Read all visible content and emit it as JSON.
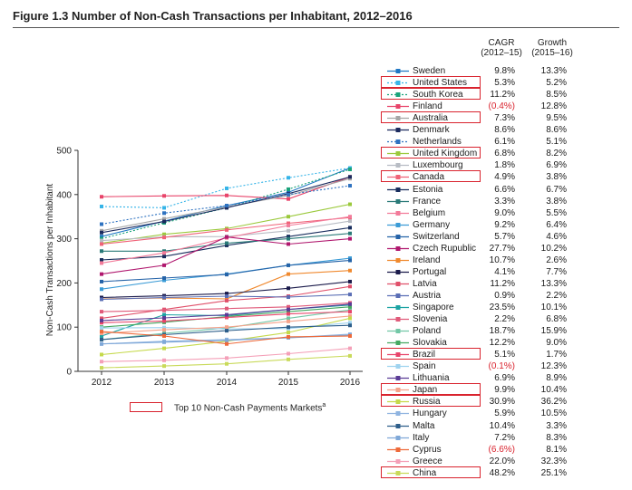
{
  "figure_title": "Figure 1.3 Number of Non-Cash Transactions per Inhabitant, 2012–2016",
  "columns": {
    "cagr": [
      "CAGR",
      "(2012–15)"
    ],
    "growth": [
      "Growth",
      "(2015–16)"
    ]
  },
  "footnote_legend": "Top 10 Non-Cash Payments Markets",
  "footnote_marker": "a",
  "chart_data": {
    "type": "line",
    "title": "Figure 1.3 Number of Non-Cash Transactions per Inhabitant, 2012–2016",
    "xlabel": "",
    "ylabel": "Non-Cash Transactions per Inhabitant",
    "x": [
      "2012",
      "2013",
      "2014",
      "2015",
      "2016"
    ],
    "ylim": [
      0,
      500
    ],
    "yticks": [
      0,
      100,
      200,
      300,
      400,
      500
    ],
    "grid": false,
    "legend_position": "right",
    "series": [
      {
        "name": "Sweden",
        "color": "#1f77c4",
        "dash": false,
        "cagr": "9.8%",
        "growth": "13.3%",
        "top10": false,
        "values": [
          305,
          340,
          375,
          405,
          460
        ]
      },
      {
        "name": "United States",
        "color": "#35b4e8",
        "dash": true,
        "cagr": "5.3%",
        "growth": "5.2%",
        "top10": true,
        "values": [
          373,
          370,
          414,
          438,
          460
        ]
      },
      {
        "name": "South Korea",
        "color": "#1aa37a",
        "dash": true,
        "cagr": "11.2%",
        "growth": "8.5%",
        "top10": true,
        "values": [
          300,
          336,
          370,
          412,
          457
        ]
      },
      {
        "name": "Finland",
        "color": "#e8446a",
        "dash": false,
        "cagr": "(0.4%)",
        "growth": "12.8%",
        "top10": false,
        "values": [
          395,
          397,
          398,
          390,
          440
        ]
      },
      {
        "name": "Australia",
        "color": "#a6a6a6",
        "dash": false,
        "cagr": "7.3%",
        "growth": "9.5%",
        "top10": true,
        "values": [
          318,
          345,
          372,
          398,
          436
        ]
      },
      {
        "name": "Denmark",
        "color": "#1b2a5e",
        "dash": false,
        "cagr": "8.6%",
        "growth": "8.6%",
        "top10": false,
        "values": [
          314,
          339,
          370,
          402,
          440
        ]
      },
      {
        "name": "Netherlands",
        "color": "#2e72c0",
        "dash": true,
        "cagr": "6.1%",
        "growth": "5.1%",
        "top10": false,
        "values": [
          333,
          358,
          375,
          400,
          420
        ]
      },
      {
        "name": "United Kingdom",
        "color": "#9bc93c",
        "dash": false,
        "cagr": "6.8%",
        "growth": "8.2%",
        "top10": true,
        "values": [
          290,
          310,
          323,
          350,
          378
        ]
      },
      {
        "name": "Luxembourg",
        "color": "#b8bcc4",
        "dash": false,
        "cagr": "1.8%",
        "growth": "6.9%",
        "top10": false,
        "values": [
          296,
          304,
          305,
          318,
          340
        ]
      },
      {
        "name": "Canada",
        "color": "#f06277",
        "dash": false,
        "cagr": "4.9%",
        "growth": "3.8%",
        "top10": true,
        "values": [
          288,
          303,
          320,
          335,
          348
        ]
      },
      {
        "name": "Estonia",
        "color": "#172c5c",
        "dash": false,
        "cagr": "6.6%",
        "growth": "6.7%",
        "top10": false,
        "values": [
          252,
          260,
          285,
          305,
          325
        ]
      },
      {
        "name": "France",
        "color": "#2a7a78",
        "dash": false,
        "cagr": "3.3%",
        "growth": "3.8%",
        "top10": false,
        "values": [
          272,
          272,
          290,
          300,
          312
        ]
      },
      {
        "name": "Belgium",
        "color": "#f27b9a",
        "dash": false,
        "cagr": "9.0%",
        "growth": "5.5%",
        "top10": false,
        "values": [
          245,
          268,
          302,
          330,
          350
        ]
      },
      {
        "name": "Germany",
        "color": "#3a9bd6",
        "dash": false,
        "cagr": "9.2%",
        "growth": "6.4%",
        "top10": false,
        "values": [
          186,
          206,
          220,
          240,
          256
        ]
      },
      {
        "name": "Switzerland",
        "color": "#2563a8",
        "dash": false,
        "cagr": "5.7%",
        "growth": "4.6%",
        "top10": false,
        "values": [
          203,
          211,
          219,
          240,
          251
        ]
      },
      {
        "name": "Czech Rupublic",
        "color": "#b0176e",
        "dash": false,
        "cagr": "27.7%",
        "growth": "10.2%",
        "top10": false,
        "values": [
          220,
          240,
          304,
          288,
          300
        ]
      },
      {
        "name": "Ireland",
        "color": "#f0892e",
        "dash": false,
        "cagr": "10.7%",
        "growth": "2.6%",
        "top10": false,
        "values": [
          164,
          166,
          164,
          220,
          228
        ]
      },
      {
        "name": "Portugal",
        "color": "#1a1a4a",
        "dash": false,
        "cagr": "4.1%",
        "growth": "7.7%",
        "top10": false,
        "values": [
          167,
          171,
          176,
          188,
          203
        ]
      },
      {
        "name": "Latvia",
        "color": "#e0506a",
        "dash": false,
        "cagr": "11.2%",
        "growth": "13.3%",
        "top10": false,
        "values": [
          120,
          140,
          160,
          170,
          192
        ]
      },
      {
        "name": "Austria",
        "color": "#5a6eb5",
        "dash": false,
        "cagr": "0.9%",
        "growth": "2.2%",
        "top10": false,
        "values": [
          163,
          167,
          170,
          168,
          174
        ]
      },
      {
        "name": "Singapore",
        "color": "#1ca3a3",
        "dash": false,
        "cagr": "23.5%",
        "growth": "10.1%",
        "top10": false,
        "values": [
          80,
          128,
          126,
          140,
          150
        ]
      },
      {
        "name": "Slovenia",
        "color": "#e05a7a",
        "dash": false,
        "cagr": "2.2%",
        "growth": "6.8%",
        "top10": false,
        "values": [
          135,
          138,
          142,
          146,
          155
        ]
      },
      {
        "name": "Poland",
        "color": "#72c7a6",
        "dash": false,
        "cagr": "18.7%",
        "growth": "15.9%",
        "top10": false,
        "values": [
          72,
          86,
          98,
          120,
          139
        ]
      },
      {
        "name": "Slovakia",
        "color": "#45a860",
        "dash": false,
        "cagr": "12.2%",
        "growth": "9.0%",
        "top10": false,
        "values": [
          100,
          111,
          124,
          135,
          146
        ]
      },
      {
        "name": "Brazil",
        "color": "#e8446a",
        "dash": false,
        "cagr": "5.1%",
        "growth": "1.7%",
        "top10": true,
        "values": [
          110,
          114,
          122,
          130,
          135
        ]
      },
      {
        "name": "Spain",
        "color": "#9fd3ef",
        "dash": false,
        "cagr": "(0.1%)",
        "growth": "12.3%",
        "top10": false,
        "values": [
          98,
          99,
          96,
          97,
          110
        ]
      },
      {
        "name": "Lithuania",
        "color": "#5b3c96",
        "dash": false,
        "cagr": "6.9%",
        "growth": "8.9%",
        "top10": false,
        "values": [
          115,
          121,
          128,
          140,
          152
        ]
      },
      {
        "name": "Japan",
        "color": "#f5a38a",
        "dash": false,
        "cagr": "9.9%",
        "growth": "10.4%",
        "top10": true,
        "values": [
          86,
          94,
          100,
          113,
          125
        ]
      },
      {
        "name": "Russia",
        "color": "#c5d94a",
        "dash": false,
        "cagr": "30.9%",
        "growth": "36.2%",
        "top10": true,
        "values": [
          38,
          52,
          68,
          88,
          120
        ]
      },
      {
        "name": "Hungary",
        "color": "#8fb4e0",
        "dash": false,
        "cagr": "5.9%",
        "growth": "10.5%",
        "top10": false,
        "values": [
          62,
          68,
          72,
          76,
          84
        ]
      },
      {
        "name": "Malta",
        "color": "#2d5e8a",
        "dash": false,
        "cagr": "10.4%",
        "growth": "3.3%",
        "top10": false,
        "values": [
          72,
          83,
          92,
          100,
          104
        ]
      },
      {
        "name": "Italy",
        "color": "#7fa8d8",
        "dash": false,
        "cagr": "7.2%",
        "growth": "8.3%",
        "top10": false,
        "values": [
          62,
          66,
          70,
          76,
          82
        ]
      },
      {
        "name": "Cyprus",
        "color": "#ee6a3a",
        "dash": false,
        "cagr": "(6.6%)",
        "growth": "8.1%",
        "top10": false,
        "values": [
          90,
          80,
          62,
          78,
          80
        ]
      },
      {
        "name": "Greece",
        "color": "#f4a0b8",
        "dash": false,
        "cagr": "22.0%",
        "growth": "32.3%",
        "top10": false,
        "values": [
          22,
          25,
          30,
          40,
          52
        ]
      },
      {
        "name": "China",
        "color": "#c9da5a",
        "dash": false,
        "cagr": "48.2%",
        "growth": "25.1%",
        "top10": true,
        "values": [
          8,
          12,
          17,
          27,
          35
        ]
      }
    ]
  }
}
